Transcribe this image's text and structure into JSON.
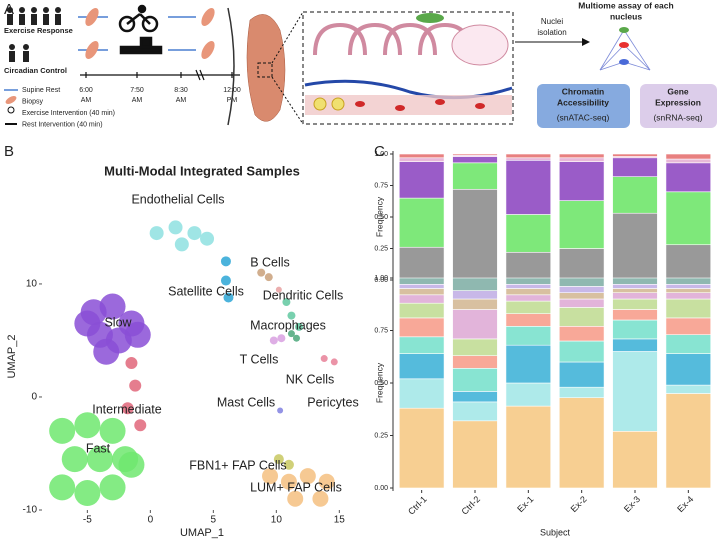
{
  "panel_a": {
    "label": "A",
    "groups": [
      "Exercise Response",
      "Circadian Control"
    ],
    "timeline": [
      {
        "time": "6:00",
        "period": "AM"
      },
      {
        "time": "7:50",
        "period": "AM"
      },
      {
        "time": "8:30",
        "period": "AM"
      },
      {
        "time": "12:00",
        "period": "PM"
      }
    ],
    "legend": [
      "Supine Rest",
      "Biopsy",
      "Exercise Intervention (40 min)",
      "Rest Intervention (40 min)"
    ],
    "isolation": [
      "Nuclei",
      "isolation"
    ],
    "multiome_title": [
      "Multiome assay of each",
      "nucleus"
    ],
    "assays": [
      {
        "name": [
          "Chromatin",
          "Accessibility"
        ],
        "method": "(snATAC-seq)"
      },
      {
        "name": [
          "Gene",
          "Expression"
        ],
        "method": "(snRNA-seq)"
      }
    ]
  },
  "panel_b_label": "B",
  "panel_c_label": "C",
  "chart_data": [
    {
      "type": "scatter",
      "title": "Multi-Modal Integrated Samples",
      "x_label": "UMAP_1",
      "y_label": "UMAP_2",
      "xlim": [
        -8.6,
        16.8
      ],
      "ylim": [
        -10,
        20.7
      ],
      "xticks": [
        -5,
        0,
        5,
        10,
        15
      ],
      "yticks": [
        -10,
        0,
        10
      ],
      "series": [
        {
          "name": "Slow",
          "color": "#8a4fd6",
          "x": [
            -4.5,
            -3,
            -1.5,
            -4,
            -2.5,
            -1,
            -5,
            -3.5
          ],
          "y": [
            7.5,
            8,
            6.5,
            5.5,
            5,
            5.5,
            6.5,
            4
          ]
        },
        {
          "name": "Intermediate",
          "color": "#e0667a",
          "x": [
            -1.5,
            -1.2,
            -1.8,
            -0.8
          ],
          "y": [
            3,
            1,
            -1,
            -2.5
          ]
        },
        {
          "name": "Fast",
          "color": "#6ee86e",
          "x": [
            -7,
            -5,
            -3,
            -6,
            -4,
            -2,
            -7,
            -5,
            -3,
            -1.5
          ],
          "y": [
            -3,
            -2.5,
            -3,
            -5.5,
            -5.5,
            -5.5,
            -8,
            -8.5,
            -8,
            -6
          ]
        },
        {
          "name": "Endothelial Cells",
          "color": "#8ee0e0",
          "x": [
            0.5,
            2,
            3.5,
            4.5,
            2.5
          ],
          "y": [
            14.5,
            15,
            14.5,
            14,
            13.5
          ]
        },
        {
          "name": "Satellite Cells",
          "color": "#2ba6d6",
          "x": [
            6,
            6,
            6.2
          ],
          "y": [
            12,
            10.3,
            8.8
          ]
        },
        {
          "name": "B Cells",
          "color": "#c9a07a",
          "x": [
            8.8,
            9.4
          ],
          "y": [
            11,
            10.6
          ]
        },
        {
          "name": "Dendritic Cells",
          "color": "#e8a0a0",
          "x": [
            10.2
          ],
          "y": [
            9.5
          ]
        },
        {
          "name": "Macrophages",
          "color": "#60c8a0",
          "x": [
            10.8,
            11.2,
            11.8
          ],
          "y": [
            8.4,
            7.2,
            6.2
          ]
        },
        {
          "name": "T Cells",
          "color": "#d8a0e0",
          "x": [
            9.8,
            10.4
          ],
          "y": [
            5,
            5.2
          ]
        },
        {
          "name": "NK Cells",
          "color": "#4ba87a",
          "x": [
            11.2,
            11.6
          ],
          "y": [
            5.6,
            5.2
          ]
        },
        {
          "name": "Mast Cells",
          "color": "#8080e0",
          "x": [
            10.3
          ],
          "y": [
            -1.2
          ]
        },
        {
          "name": "Pericytes",
          "color": "#e88098",
          "x": [
            13.8,
            14.6
          ],
          "y": [
            3.4,
            3.1
          ]
        },
        {
          "name": "FBN1+ FAP Cells",
          "color": "#c8c860",
          "x": [
            10.2,
            11
          ],
          "y": [
            -5.5,
            -6
          ]
        },
        {
          "name": "LUM+ FAP Cells",
          "color": "#f5c080",
          "x": [
            9.5,
            11,
            12.5,
            14,
            11.5,
            13.5
          ],
          "y": [
            -7,
            -7.5,
            -7,
            -7.5,
            -9,
            -9
          ]
        }
      ]
    },
    {
      "type": "bar",
      "stacked": true,
      "y_label": "Frequency",
      "categories": [
        null,
        null,
        null,
        null,
        null,
        null
      ],
      "ylim": [
        0,
        1
      ],
      "yticks": [
        {
          "value": 0,
          "label": "0.00"
        },
        {
          "value": 0.25,
          "label": "0.25"
        },
        {
          "value": 0.5,
          "label": "0.50"
        },
        {
          "value": 0.75,
          "label": "0.75"
        },
        {
          "value": 1,
          "label": "1.00"
        }
      ],
      "series": [
        {
          "color": "#999999",
          "values": [
            0.26,
            0.72,
            0.22,
            0.25,
            0.53,
            0.28
          ]
        },
        {
          "color": "#7ee87a",
          "values": [
            0.39,
            0.21,
            0.3,
            0.38,
            0.29,
            0.42
          ]
        },
        {
          "color": "#9a5cc8",
          "values": [
            0.29,
            0.05,
            0.43,
            0.31,
            0.15,
            0.23
          ]
        },
        {
          "color": "#e8b8d8",
          "values": [
            0.03,
            0.01,
            0.02,
            0.03,
            0.01,
            0.03
          ]
        },
        {
          "color": "#e88080",
          "values": [
            0.03,
            0.01,
            0.03,
            0.03,
            0.02,
            0.04
          ]
        }
      ]
    },
    {
      "type": "bar",
      "stacked": true,
      "y_label": "Frequency",
      "x_label": "Subject",
      "categories": [
        "Ctrl-1",
        "Ctrl-2",
        "Ex-1",
        "Ex-2",
        "Ex-3",
        "Ex-4"
      ],
      "ylim": [
        0,
        1
      ],
      "yticks": [
        {
          "value": 0,
          "label": "0.00"
        },
        {
          "value": 0.25,
          "label": "0.25"
        },
        {
          "value": 0.5,
          "label": "0.50"
        },
        {
          "value": 0.75,
          "label": "0.75"
        },
        {
          "value": 1,
          "label": "1.00"
        }
      ],
      "series": [
        {
          "color": "#f7cf92",
          "values": [
            0.38,
            0.32,
            0.39,
            0.43,
            0.27,
            0.45
          ]
        },
        {
          "color": "#aeeaea",
          "values": [
            0.14,
            0.09,
            0.11,
            0.05,
            0.38,
            0.04
          ]
        },
        {
          "color": "#55bbdc",
          "values": [
            0.12,
            0.05,
            0.18,
            0.12,
            0.06,
            0.15
          ]
        },
        {
          "color": "#88e4d2",
          "values": [
            0.08,
            0.11,
            0.09,
            0.1,
            0.09,
            0.09
          ]
        },
        {
          "color": "#f8a898",
          "values": [
            0.09,
            0.06,
            0.06,
            0.07,
            0.05,
            0.08
          ]
        },
        {
          "color": "#c8e0a0",
          "values": [
            0.07,
            0.08,
            0.06,
            0.09,
            0.05,
            0.09
          ]
        },
        {
          "color": "#e2b4da",
          "values": [
            0.04,
            0.14,
            0.03,
            0.04,
            0.03,
            0.03
          ]
        },
        {
          "color": "#d8c0a0",
          "values": [
            0.03,
            0.05,
            0.03,
            0.03,
            0.02,
            0.02
          ]
        },
        {
          "color": "#c8b8e8",
          "values": [
            0.02,
            0.04,
            0.02,
            0.03,
            0.02,
            0.02
          ]
        },
        {
          "color": "#8fb8b0",
          "values": [
            0.03,
            0.06,
            0.03,
            0.04,
            0.03,
            0.03
          ]
        }
      ]
    }
  ]
}
